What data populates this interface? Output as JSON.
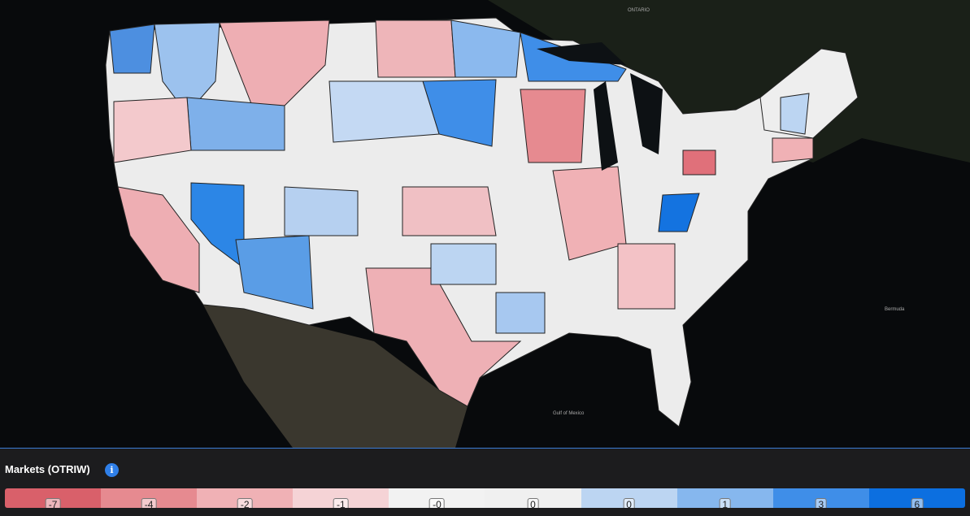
{
  "map": {
    "places": [
      "ONTARIO",
      "Gulf of Mexico",
      "Bermuda"
    ]
  },
  "legend": {
    "title": "Markets (OTRIW)",
    "bins": [
      {
        "label": "-7",
        "color": "#d9606a"
      },
      {
        "label": "-4",
        "color": "#e68a90"
      },
      {
        "label": "-2",
        "color": "#f0b1b5"
      },
      {
        "label": "-1",
        "color": "#f5d3d6"
      },
      {
        "label": "-0",
        "color": "#f2f2f2"
      },
      {
        "label": "0",
        "color": "#f0f0f0"
      },
      {
        "label": "0",
        "color": "#bcd5f2"
      },
      {
        "label": "1",
        "color": "#86b7ee"
      },
      {
        "label": "3",
        "color": "#3f8ee8"
      },
      {
        "label": "6",
        "color": "#0c6fe0"
      }
    ]
  }
}
